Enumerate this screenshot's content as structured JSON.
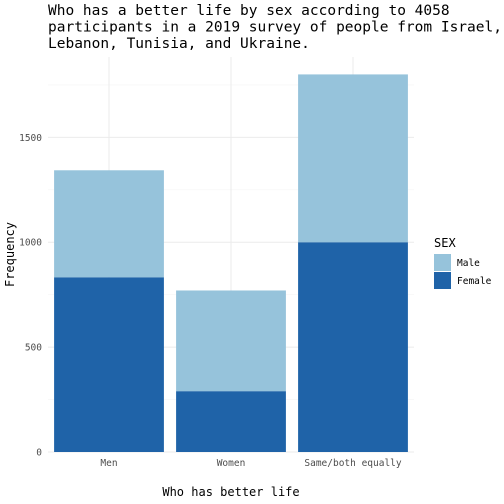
{
  "chart_data": {
    "type": "bar",
    "stacked": true,
    "title_lines": [
      "Who has a better life by sex according to 4058",
      "participants in a 2019 survey of people from Israel,",
      "Lebanon, Tunisia, and Ukraine."
    ],
    "xlabel": "Who has better life",
    "ylabel": "Frequency",
    "categories": [
      "Men",
      "Women",
      "Same/both equally"
    ],
    "series": [
      {
        "name": "Female",
        "values": [
          833,
          290,
          1000
        ],
        "color": "#1f63a8"
      },
      {
        "name": "Male",
        "values": [
          510,
          480,
          800
        ],
        "color": "#96c3db"
      }
    ],
    "ylim": [
      0,
      1800
    ],
    "yticks": [
      0,
      500,
      1000,
      1500
    ],
    "legend": {
      "title": "SEX",
      "order": [
        "Male",
        "Female"
      ],
      "position": "right"
    },
    "grid": true
  }
}
